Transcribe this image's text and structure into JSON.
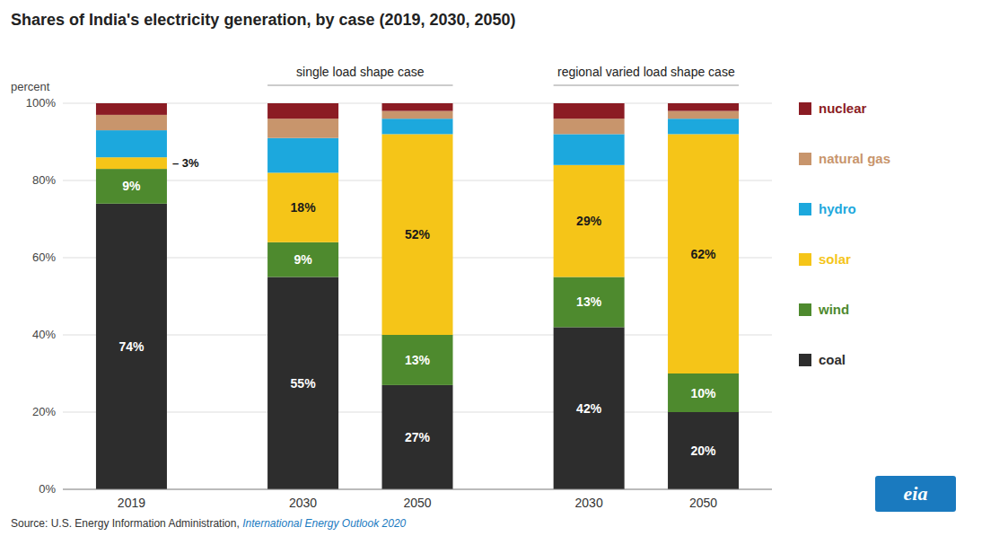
{
  "chart_data": {
    "type": "bar",
    "stacked": true,
    "title": "Shares of India's electricity generation, by case (2019, 2030, 2050)",
    "y_label": "percent",
    "categories": [
      "2019",
      "2030",
      "2050",
      "2030",
      "2050"
    ],
    "groups": [
      {
        "label": "single load shape case",
        "from": 1,
        "to": 2
      },
      {
        "label": "regional varied load shape case",
        "from": 3,
        "to": 4
      }
    ],
    "series": [
      {
        "name": "coal",
        "color": "#2d2d2d",
        "values": [
          0.74,
          0.55,
          0.27,
          0.42,
          0.2
        ],
        "value_labels": [
          "74%",
          "55%",
          "27%",
          "42%",
          "20%"
        ]
      },
      {
        "name": "wind",
        "color": "#4e8a2e",
        "values": [
          0.09,
          0.09,
          0.13,
          0.13,
          0.1
        ],
        "value_labels": [
          "9%",
          "9%",
          "13%",
          "13%",
          "10%"
        ]
      },
      {
        "name": "solar",
        "color": "#f5c518",
        "values": [
          0.03,
          0.18,
          0.52,
          0.29,
          0.62
        ],
        "value_labels": [
          null,
          "18%",
          "52%",
          "29%",
          "62%"
        ]
      },
      {
        "name": "hydro",
        "color": "#1ca8dd",
        "values": [
          0.07,
          0.09,
          0.04,
          0.08,
          0.04
        ]
      },
      {
        "name": "natural gas",
        "color": "#c8956c",
        "values": [
          0.04,
          0.05,
          0.02,
          0.04,
          0.02
        ]
      },
      {
        "name": "nuclear",
        "color": "#8b1c24",
        "values": [
          0.03,
          0.04,
          0.02,
          0.04,
          0.02
        ]
      }
    ],
    "annotations": [
      {
        "text": "– 3%",
        "series": "solar",
        "category": "2019"
      }
    ],
    "ylim": [
      0,
      1.0
    ],
    "yticks": [
      {
        "value": 0,
        "label": "0%"
      },
      {
        "value": 0.2,
        "label": "20%"
      },
      {
        "value": 0.4,
        "label": "40%"
      },
      {
        "value": 0.6,
        "label": "60%"
      },
      {
        "value": 0.8,
        "label": "80%"
      },
      {
        "value": 1.0,
        "label": "100%"
      }
    ],
    "grid": true,
    "legend": "right",
    "source": "Source: U.S. Energy Information Administration,",
    "source_publication": "International Energy Outlook 2020",
    "logo": "eia"
  }
}
